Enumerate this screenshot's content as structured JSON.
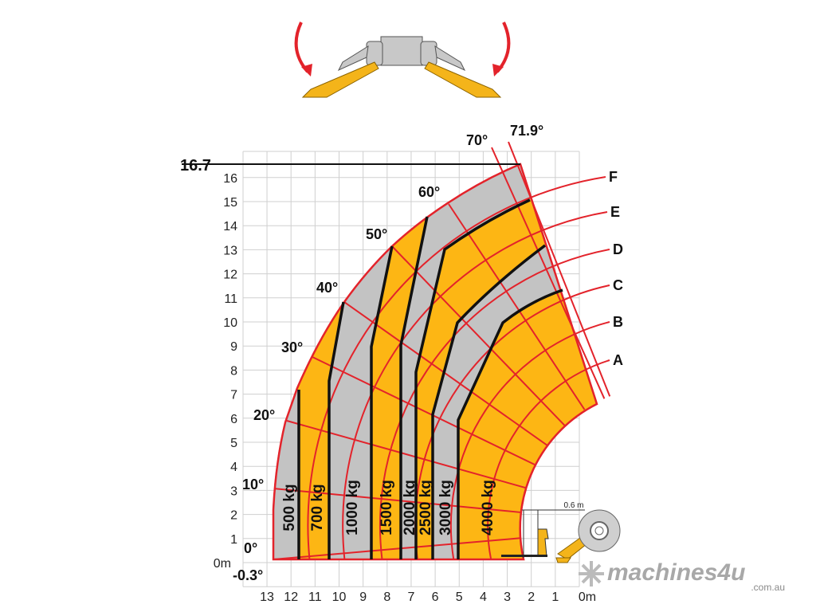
{
  "chart": {
    "max_height_label": "16.7",
    "min_angle_label": "-0.3°",
    "y_zero_label": "0m",
    "x_zero_label": "0m",
    "y_ticks": [
      "1",
      "2",
      "3",
      "4",
      "5",
      "6",
      "7",
      "8",
      "9",
      "10",
      "11",
      "12",
      "13",
      "14",
      "15",
      "16"
    ],
    "x_ticks": [
      "13",
      "12",
      "11",
      "10",
      "9",
      "8",
      "7",
      "6",
      "5",
      "4",
      "3",
      "2",
      "1"
    ],
    "angles": [
      "0°",
      "10°",
      "20°",
      "30°",
      "40°",
      "50°",
      "60°",
      "70°",
      "71.9°"
    ],
    "curves": [
      "A",
      "B",
      "C",
      "D",
      "E",
      "F"
    ],
    "loads": [
      "500 kg",
      "700 kg",
      "1000 kg",
      "1500 kg",
      "2000 kg",
      "2500 kg",
      "3000 kg",
      "4000 kg"
    ],
    "fork_offset_label": "0.6 m"
  },
  "colors": {
    "zone_orange": "#FDB614",
    "zone_grey": "#C3C3C3",
    "line_red": "#E3232B",
    "boundary_black": "#111111",
    "grid": "#CFCFCF"
  },
  "logo": {
    "name": "machines4u",
    "suffix": ".com.au"
  }
}
